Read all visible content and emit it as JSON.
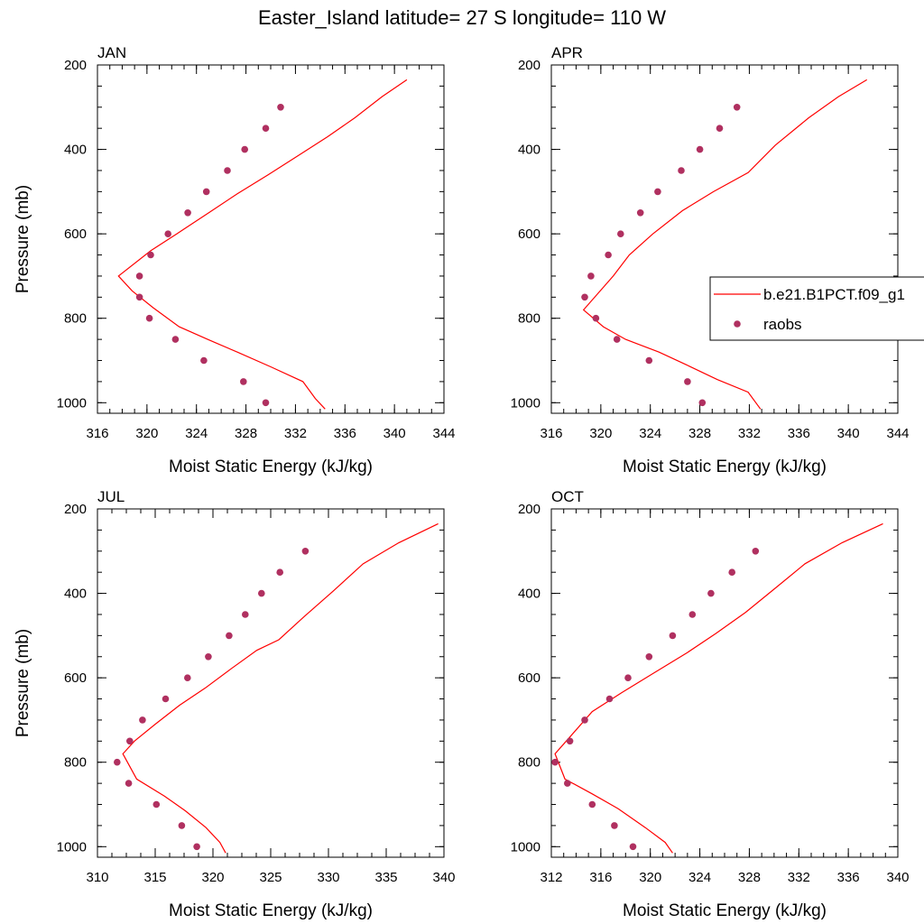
{
  "title": "Easter_Island  latitude= 27 S longitude= 110 W",
  "colors": {
    "model": "#ff0000",
    "raobs": "#b03060",
    "axis": "#000000",
    "background": "#ffffff"
  },
  "legend": {
    "model_label": "b.e21.B1PCT.f09_g1",
    "raobs_label": "raobs",
    "placement": "right of APR panel"
  },
  "chart_data": [
    {
      "type": "line+scatter",
      "panel": "JAN",
      "xlabel": "Moist Static Energy (kJ/kg)",
      "ylabel": "Pressure (mb)",
      "xlim": [
        316,
        344
      ],
      "ylim": [
        1025,
        200
      ],
      "yreversed": true,
      "xticks": [
        316,
        320,
        324,
        328,
        332,
        336,
        340,
        344
      ],
      "yticks": [
        200,
        400,
        600,
        800,
        1000
      ],
      "series": [
        {
          "name": "b.e21.B1PCT.f09_g1",
          "kind": "line",
          "x": [
            341.0,
            339.0,
            336.8,
            334.6,
            332.2,
            329.8,
            327.3,
            325.0,
            322.4,
            320.3,
            317.7,
            318.8,
            320.5,
            322.6,
            324.9,
            327.3,
            330.0,
            332.6,
            333.6,
            334.4
          ],
          "y": [
            235,
            275,
            325,
            370,
            415,
            460,
            505,
            550,
            600,
            640,
            700,
            735,
            775,
            820,
            850,
            880,
            915,
            950,
            990,
            1015
          ]
        },
        {
          "name": "raobs",
          "kind": "scatter",
          "x": [
            330.8,
            329.6,
            327.9,
            326.5,
            324.8,
            323.3,
            321.7,
            320.3,
            319.4,
            319.4,
            320.2,
            322.3,
            324.6,
            327.8,
            329.6
          ],
          "y": [
            300,
            350,
            400,
            450,
            500,
            550,
            600,
            650,
            700,
            750,
            800,
            850,
            900,
            950,
            1000
          ]
        }
      ]
    },
    {
      "type": "line+scatter",
      "panel": "APR",
      "xlabel": "Moist Static Energy (kJ/kg)",
      "ylabel": "",
      "xlim": [
        316,
        344
      ],
      "ylim": [
        1025,
        200
      ],
      "yreversed": true,
      "xticks": [
        316,
        320,
        324,
        328,
        332,
        336,
        340,
        344
      ],
      "yticks": [
        200,
        400,
        600,
        800,
        1000
      ],
      "series": [
        {
          "name": "b.e21.B1PCT.f09_g1",
          "kind": "line",
          "x": [
            341.5,
            339.2,
            336.8,
            334.1,
            331.9,
            329.1,
            326.6,
            324.2,
            322.3,
            321.0,
            318.6,
            320.2,
            322.0,
            324.7,
            326.9,
            329.4,
            331.9,
            332.9
          ],
          "y": [
            235,
            275,
            325,
            390,
            455,
            500,
            545,
            600,
            650,
            700,
            780,
            820,
            850,
            880,
            910,
            945,
            975,
            1015
          ]
        },
        {
          "name": "raobs",
          "kind": "scatter",
          "x": [
            331.0,
            329.6,
            328.0,
            326.5,
            324.6,
            323.2,
            321.6,
            320.6,
            319.2,
            318.7,
            319.6,
            321.3,
            323.9,
            327.0,
            328.2
          ],
          "y": [
            300,
            350,
            400,
            450,
            500,
            550,
            600,
            650,
            700,
            750,
            800,
            850,
            900,
            950,
            1000
          ]
        }
      ]
    },
    {
      "type": "line+scatter",
      "panel": "JUL",
      "xlabel": "Moist Static Energy (kJ/kg)",
      "ylabel": "Pressure (mb)",
      "xlim": [
        310,
        340
      ],
      "ylim": [
        1025,
        200
      ],
      "yreversed": true,
      "xticks": [
        310,
        315,
        320,
        325,
        330,
        335,
        340
      ],
      "yticks": [
        200,
        400,
        600,
        800,
        1000
      ],
      "series": [
        {
          "name": "b.e21.B1PCT.f09_g1",
          "kind": "line",
          "x": [
            339.5,
            336.1,
            333.0,
            330.4,
            327.9,
            325.7,
            323.8,
            321.5,
            319.3,
            317.1,
            315.0,
            313.2,
            312.2,
            313.4,
            315.8,
            317.6,
            319.4,
            320.6,
            321.1
          ],
          "y": [
            235,
            280,
            330,
            395,
            455,
            510,
            535,
            580,
            625,
            665,
            710,
            750,
            780,
            840,
            880,
            915,
            955,
            990,
            1015
          ]
        },
        {
          "name": "raobs",
          "kind": "scatter",
          "x": [
            328.0,
            325.8,
            324.2,
            322.8,
            321.4,
            319.6,
            317.8,
            315.9,
            313.9,
            312.8,
            311.7,
            312.7,
            315.1,
            317.3,
            318.6
          ],
          "y": [
            300,
            350,
            400,
            450,
            500,
            550,
            600,
            650,
            700,
            750,
            800,
            850,
            900,
            950,
            1000
          ]
        }
      ]
    },
    {
      "type": "line+scatter",
      "panel": "OCT",
      "xlabel": "Moist Static Energy (kJ/kg)",
      "ylabel": "",
      "xlim": [
        312,
        340
      ],
      "ylim": [
        1025,
        200
      ],
      "yreversed": true,
      "xticks": [
        312,
        316,
        320,
        324,
        328,
        332,
        336,
        340
      ],
      "yticks": [
        200,
        400,
        600,
        800,
        1000
      ],
      "series": [
        {
          "name": "b.e21.B1PCT.f09_g1",
          "kind": "line",
          "x": [
            338.8,
            335.5,
            332.5,
            330.0,
            327.7,
            325.3,
            323.0,
            320.2,
            317.7,
            315.3,
            313.5,
            312.3,
            313.1,
            315.3,
            317.4,
            319.6,
            321.2,
            321.8
          ],
          "y": [
            235,
            280,
            330,
            390,
            445,
            495,
            540,
            590,
            635,
            680,
            740,
            780,
            840,
            875,
            910,
            955,
            990,
            1015
          ]
        },
        {
          "name": "raobs",
          "kind": "scatter",
          "x": [
            328.5,
            326.6,
            324.9,
            323.4,
            321.8,
            319.9,
            318.2,
            316.7,
            314.7,
            313.5,
            312.3,
            313.3,
            315.3,
            317.1,
            318.6
          ],
          "y": [
            300,
            350,
            400,
            450,
            500,
            550,
            600,
            650,
            700,
            750,
            800,
            850,
            900,
            950,
            1000
          ]
        }
      ]
    }
  ]
}
